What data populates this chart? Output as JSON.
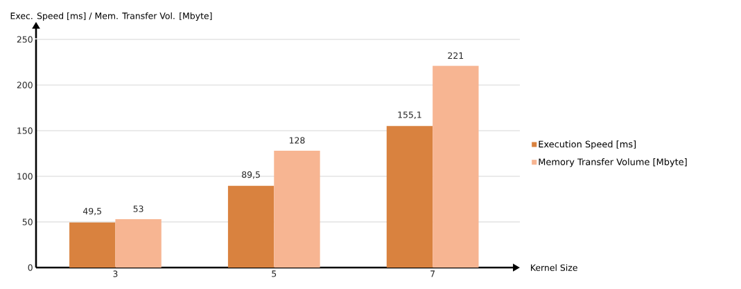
{
  "chart_data": {
    "type": "bar",
    "xlabel": "Kernel Size",
    "ylabel": "Exec. Speed [ms] / Mem. Transfer Vol. [Mbyte]",
    "categories": [
      "3",
      "5",
      "7"
    ],
    "series": [
      {
        "name": "Execution Speed [ms]",
        "color": "#d9823f",
        "values": [
          49.5,
          89.5,
          155.1
        ],
        "value_labels": [
          "49,5",
          "89,5",
          "155,1"
        ]
      },
      {
        "name": "Memory Transfer Volume [Mbyte]",
        "color": "#f7b592",
        "values": [
          53,
          128,
          221
        ],
        "value_labels": [
          "53",
          "128",
          "221"
        ]
      }
    ],
    "ylim": [
      0,
      250
    ],
    "yticks": [
      0,
      50,
      100,
      150,
      200,
      250
    ],
    "grid": "y",
    "legend": "right"
  }
}
